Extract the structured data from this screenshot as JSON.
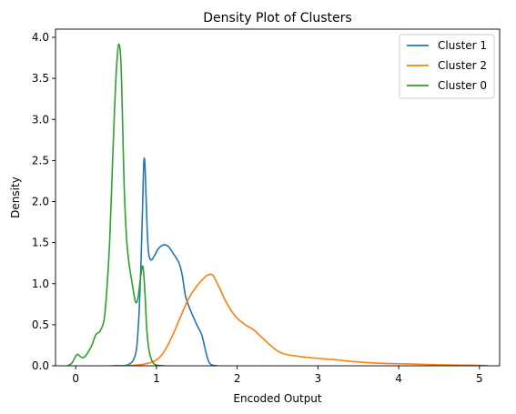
{
  "chart_data": {
    "type": "line",
    "title": "Density Plot of Clusters",
    "xlabel": "Encoded Output",
    "ylabel": "Density",
    "xlim": [
      -0.25,
      5.25
    ],
    "ylim": [
      0,
      4.1
    ],
    "xticks": [
      0,
      1,
      2,
      3,
      4,
      5
    ],
    "xtick_labels": [
      "0",
      "1",
      "2",
      "3",
      "4",
      "5"
    ],
    "yticks": [
      0.0,
      0.5,
      1.0,
      1.5,
      2.0,
      2.5,
      3.0,
      3.5,
      4.0
    ],
    "ytick_labels": [
      "0.0",
      "0.5",
      "1.0",
      "1.5",
      "2.0",
      "2.5",
      "3.0",
      "3.5",
      "4.0"
    ],
    "grid": false,
    "legend_position": "top-right",
    "series": [
      {
        "name": "Cluster 1",
        "color": "#1f77b4",
        "points": [
          [
            0.47,
            0
          ],
          [
            0.55,
            0
          ],
          [
            0.62,
            0.005
          ],
          [
            0.68,
            0.03
          ],
          [
            0.72,
            0.08
          ],
          [
            0.75,
            0.18
          ],
          [
            0.77,
            0.4
          ],
          [
            0.79,
            0.75
          ],
          [
            0.81,
            1.3
          ],
          [
            0.83,
            2.0
          ],
          [
            0.845,
            2.5
          ],
          [
            0.86,
            2.4
          ],
          [
            0.88,
            1.8
          ],
          [
            0.9,
            1.4
          ],
          [
            0.93,
            1.29
          ],
          [
            0.97,
            1.33
          ],
          [
            1.02,
            1.42
          ],
          [
            1.08,
            1.47
          ],
          [
            1.14,
            1.46
          ],
          [
            1.2,
            1.38
          ],
          [
            1.28,
            1.25
          ],
          [
            1.32,
            1.1
          ],
          [
            1.36,
            0.85
          ],
          [
            1.42,
            0.68
          ],
          [
            1.5,
            0.5
          ],
          [
            1.56,
            0.38
          ],
          [
            1.6,
            0.22
          ],
          [
            1.63,
            0.1
          ],
          [
            1.66,
            0.03
          ],
          [
            1.7,
            0.005
          ],
          [
            1.75,
            0
          ]
        ]
      },
      {
        "name": "Cluster 2",
        "color": "#ff7f0e",
        "points": [
          [
            0.45,
            0
          ],
          [
            0.7,
            0.005
          ],
          [
            0.85,
            0.02
          ],
          [
            1.0,
            0.07
          ],
          [
            1.1,
            0.18
          ],
          [
            1.2,
            0.37
          ],
          [
            1.3,
            0.6
          ],
          [
            1.4,
            0.82
          ],
          [
            1.5,
            0.97
          ],
          [
            1.6,
            1.08
          ],
          [
            1.65,
            1.11
          ],
          [
            1.7,
            1.1
          ],
          [
            1.78,
            0.95
          ],
          [
            1.85,
            0.8
          ],
          [
            1.92,
            0.68
          ],
          [
            2.0,
            0.58
          ],
          [
            2.1,
            0.5
          ],
          [
            2.2,
            0.44
          ],
          [
            2.3,
            0.35
          ],
          [
            2.4,
            0.26
          ],
          [
            2.5,
            0.18
          ],
          [
            2.6,
            0.14
          ],
          [
            2.8,
            0.11
          ],
          [
            3.0,
            0.09
          ],
          [
            3.2,
            0.075
          ],
          [
            3.4,
            0.055
          ],
          [
            3.6,
            0.04
          ],
          [
            3.8,
            0.03
          ],
          [
            4.0,
            0.025
          ],
          [
            4.2,
            0.02
          ],
          [
            4.4,
            0.015
          ],
          [
            4.6,
            0.01
          ],
          [
            4.8,
            0.008
          ],
          [
            5.0,
            0.005
          ],
          [
            5.1,
            0.002
          ]
        ]
      },
      {
        "name": "Cluster 0",
        "color": "#2ca02c",
        "points": [
          [
            -0.1,
            0
          ],
          [
            -0.05,
            0.03
          ],
          [
            -0.02,
            0.08
          ],
          [
            0.02,
            0.14
          ],
          [
            0.06,
            0.11
          ],
          [
            0.1,
            0.1
          ],
          [
            0.15,
            0.16
          ],
          [
            0.2,
            0.25
          ],
          [
            0.25,
            0.38
          ],
          [
            0.3,
            0.42
          ],
          [
            0.35,
            0.55
          ],
          [
            0.38,
            0.85
          ],
          [
            0.42,
            1.5
          ],
          [
            0.45,
            2.3
          ],
          [
            0.48,
            3.1
          ],
          [
            0.51,
            3.7
          ],
          [
            0.535,
            3.92
          ],
          [
            0.56,
            3.7
          ],
          [
            0.58,
            3.0
          ],
          [
            0.6,
            2.2
          ],
          [
            0.63,
            1.55
          ],
          [
            0.66,
            1.25
          ],
          [
            0.7,
            1.0
          ],
          [
            0.74,
            0.78
          ],
          [
            0.77,
            0.82
          ],
          [
            0.8,
            1.05
          ],
          [
            0.825,
            1.21
          ],
          [
            0.84,
            1.15
          ],
          [
            0.86,
            0.85
          ],
          [
            0.88,
            0.45
          ],
          [
            0.91,
            0.18
          ],
          [
            0.95,
            0.05
          ],
          [
            1.0,
            0.01
          ],
          [
            1.1,
            0
          ]
        ]
      }
    ]
  }
}
